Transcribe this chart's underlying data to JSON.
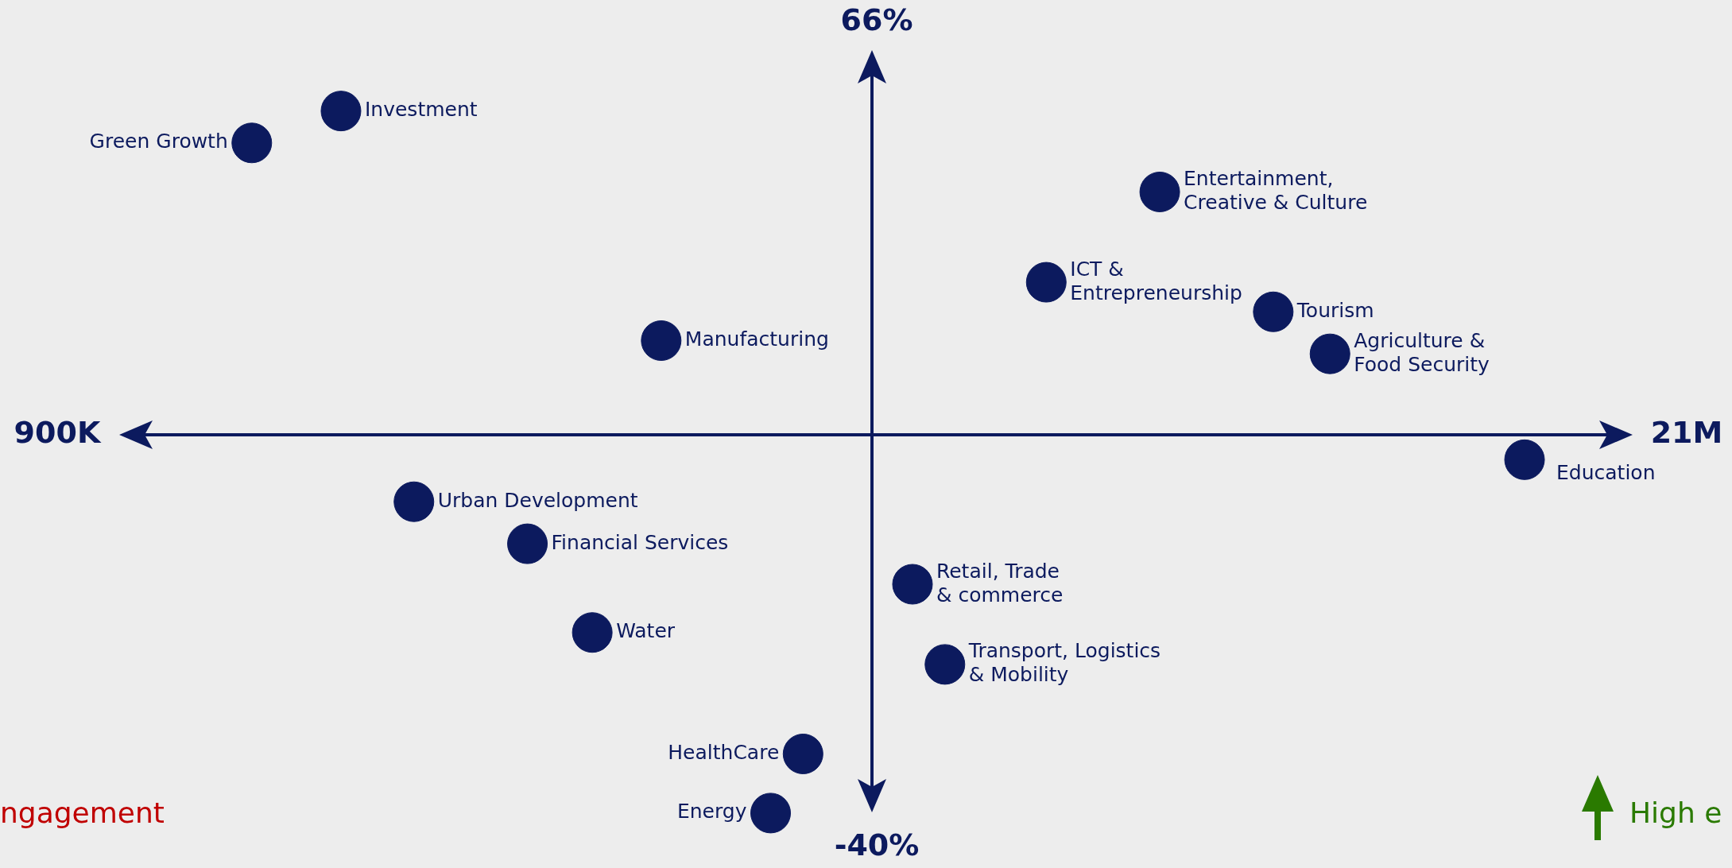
{
  "chart_data": {
    "type": "scatter",
    "color": "#0c1a5e",
    "marker": "circle",
    "legend": false,
    "xlim": [
      900000,
      21000000
    ],
    "ylim": [
      -40,
      66
    ],
    "xticks": [
      {
        "value": 900000,
        "label": "900K"
      },
      {
        "value": 21000000,
        "label": "21M"
      }
    ],
    "yticks": [
      {
        "value": -40,
        "label": "-40%"
      },
      {
        "value": 66,
        "label": "66%"
      }
    ],
    "x": [
      4400000,
      3300000,
      14500000,
      13100000,
      15900000,
      16600000,
      8350000,
      19000000,
      5300000,
      6700000,
      7500000,
      11450000,
      11850000,
      10100000,
      9700000
    ],
    "values": [
      54.6,
      50.5,
      44.2,
      32.6,
      28.8,
      23.4,
      25.1,
      9.8,
      4.4,
      -1,
      -12.4,
      -6.2,
      -16.5,
      -28,
      -35.6
    ],
    "annotations": [
      {
        "text": "Investment",
        "x": 4400000,
        "y": 54.6
      },
      {
        "text": "Green Growth",
        "x": 3300000,
        "y": 50.5
      },
      {
        "text": "Entertainment,\nCreative & Culture",
        "x": 14500000,
        "y": 44.2
      },
      {
        "text": "ICT &\nEntrepreneurship",
        "x": 13100000,
        "y": 32.6
      },
      {
        "text": "Tourism",
        "x": 15900000,
        "y": 28.8
      },
      {
        "text": "Agriculture &\nFood Security",
        "x": 16600000,
        "y": 23.4
      },
      {
        "text": "Manufacturing",
        "x": 8350000,
        "y": 25.1
      },
      {
        "text": "Education",
        "x": 19000000,
        "y": 9.8
      },
      {
        "text": "Urban Development",
        "x": 5300000,
        "y": 4.4
      },
      {
        "text": "Financial Services",
        "x": 6700000,
        "y": -1
      },
      {
        "text": "Water",
        "x": 7500000,
        "y": -12.4
      },
      {
        "text": "Retail, Trade\n& commerce",
        "x": 11450000,
        "y": -6.2
      },
      {
        "text": "Transport, Logistics\n& Mobility",
        "x": 11850000,
        "y": -16.5
      },
      {
        "text": "HealthCare",
        "x": 10100000,
        "y": -28
      },
      {
        "text": "Energy",
        "x": 9700000,
        "y": -35.6
      },
      "ngagement",
      "High e"
    ]
  }
}
